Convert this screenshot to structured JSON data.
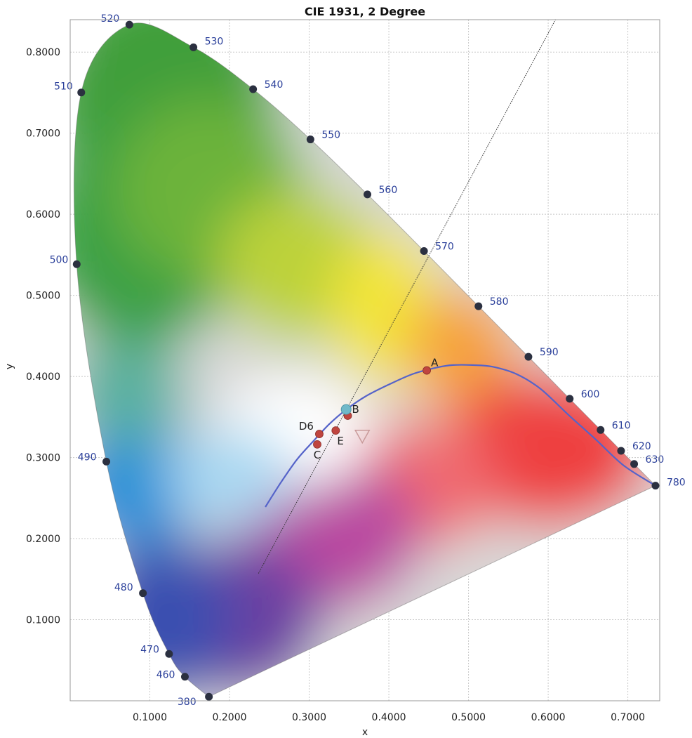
{
  "chart_data": {
    "type": "scatter",
    "title": "CIE 1931, 2 Degree",
    "xlabel": "x",
    "ylabel": "y",
    "xlim": [
      0.0,
      0.74
    ],
    "ylim": [
      0.0,
      0.84
    ],
    "x_ticks": [
      "0.1000",
      "0.2000",
      "0.3000",
      "0.4000",
      "0.5000",
      "0.6000",
      "0.7000"
    ],
    "x_tick_values": [
      0.1,
      0.2,
      0.3,
      0.4,
      0.5,
      0.6,
      0.7
    ],
    "y_ticks": [
      "0.1000",
      "0.2000",
      "0.3000",
      "0.4000",
      "0.5000",
      "0.6000",
      "0.7000",
      "0.8000"
    ],
    "y_tick_values": [
      0.1,
      0.2,
      0.3,
      0.4,
      0.5,
      0.6,
      0.7,
      0.8
    ],
    "grid": true,
    "spectral_locus": [
      {
        "label": "380",
        "x": 0.1741,
        "y": 0.005
      },
      {
        "label": "460",
        "x": 0.144,
        "y": 0.0297
      },
      {
        "label": "470",
        "x": 0.1241,
        "y": 0.0578
      },
      {
        "label": "480",
        "x": 0.0913,
        "y": 0.1327
      },
      {
        "label": "490",
        "x": 0.0454,
        "y": 0.295
      },
      {
        "label": "500",
        "x": 0.0082,
        "y": 0.5384
      },
      {
        "label": "510",
        "x": 0.0139,
        "y": 0.7502
      },
      {
        "label": "520",
        "x": 0.0743,
        "y": 0.8338
      },
      {
        "label": "530",
        "x": 0.1547,
        "y": 0.8059
      },
      {
        "label": "540",
        "x": 0.2296,
        "y": 0.7543
      },
      {
        "label": "550",
        "x": 0.3016,
        "y": 0.6923
      },
      {
        "label": "560",
        "x": 0.3731,
        "y": 0.6245
      },
      {
        "label": "570",
        "x": 0.4441,
        "y": 0.5547
      },
      {
        "label": "580",
        "x": 0.5125,
        "y": 0.4866
      },
      {
        "label": "590",
        "x": 0.5752,
        "y": 0.4242
      },
      {
        "label": "600",
        "x": 0.627,
        "y": 0.3725
      },
      {
        "label": "610",
        "x": 0.6658,
        "y": 0.334
      },
      {
        "label": "620",
        "x": 0.6915,
        "y": 0.3083
      },
      {
        "label": "630",
        "x": 0.7079,
        "y": 0.292
      },
      {
        "label": "780",
        "x": 0.7347,
        "y": 0.2653
      }
    ],
    "illuminants": [
      {
        "label": "A",
        "x": 0.4476,
        "y": 0.4074
      },
      {
        "label": "B",
        "x": 0.3484,
        "y": 0.3516
      },
      {
        "label": "D6",
        "x": 0.3127,
        "y": 0.329
      },
      {
        "label": "C",
        "x": 0.3101,
        "y": 0.3162
      },
      {
        "label": "E",
        "x": 0.3333,
        "y": 0.3333
      }
    ],
    "highlight_point": {
      "x": 0.3464,
      "y": 0.3593
    },
    "marker_point": {
      "x": 0.3667,
      "y": 0.3267
    },
    "planckian_locus": [
      [
        0.245,
        0.239
      ],
      [
        0.265,
        0.27
      ],
      [
        0.285,
        0.298
      ],
      [
        0.305,
        0.32
      ],
      [
        0.325,
        0.341
      ],
      [
        0.345,
        0.358
      ],
      [
        0.37,
        0.375
      ],
      [
        0.4,
        0.39
      ],
      [
        0.43,
        0.403
      ],
      [
        0.46,
        0.411
      ],
      [
        0.48,
        0.414
      ],
      [
        0.505,
        0.414
      ],
      [
        0.53,
        0.412
      ],
      [
        0.56,
        0.403
      ],
      [
        0.59,
        0.385
      ],
      [
        0.625,
        0.353
      ],
      [
        0.66,
        0.322
      ],
      [
        0.695,
        0.29
      ],
      [
        0.7347,
        0.2653
      ]
    ],
    "reference_line": [
      [
        0.2364,
        0.1571
      ],
      [
        0.6094,
        0.8404
      ]
    ],
    "colors": {
      "locus_point": "#2b3040",
      "wavelength_label": "#2a3f9a",
      "illuminant_point": "#c0453f",
      "highlight_point": "#6fb9c9",
      "planckian_line": "#5563c9",
      "reference_line": "#333333",
      "grid": "#c8c8c8"
    }
  }
}
